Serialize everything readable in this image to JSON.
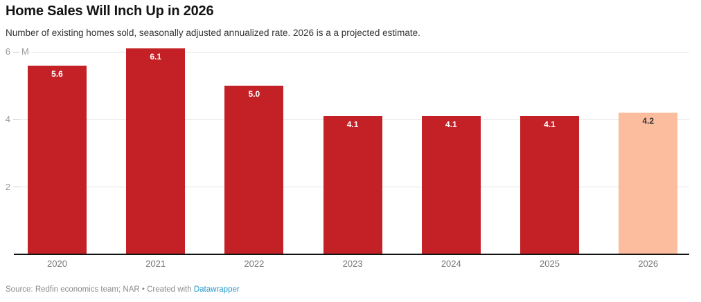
{
  "header": {
    "title": "Home Sales Will Inch Up in 2026",
    "subtitle": "Number of existing homes sold, seasonally adjusted annualized rate. 2026 is a a projected estimate."
  },
  "chart_data": {
    "type": "bar",
    "title": "Home Sales Will Inch Up in 2026",
    "categories": [
      "2020",
      "2021",
      "2022",
      "2023",
      "2024",
      "2025",
      "2026"
    ],
    "values": [
      5.6,
      6.1,
      5.0,
      4.1,
      4.1,
      4.1,
      4.2
    ],
    "bar_labels": [
      "5.6",
      "6.1",
      "5.0",
      "4.1",
      "4.1",
      "4.1",
      "4.2"
    ],
    "xlabel": "",
    "ylabel": "M",
    "unit": "M",
    "ylim": [
      0,
      6.2
    ],
    "yticks": [
      2,
      4,
      6
    ],
    "grid": "horizontal",
    "legend": "none",
    "projected_index": 6,
    "colors": {
      "bar": "#c42127",
      "projected_bar": "#fcbc9e",
      "bar_label": "#ffffff",
      "projected_bar_label": "#333333",
      "gridline": "#e4e4e4",
      "axis_line": "#131313",
      "tick_label": "#9b9b9b",
      "category_label": "#767676"
    }
  },
  "footer": {
    "source_text": "Source: Redfin economics team; NAR",
    "separator": " • ",
    "created_with": "Created with ",
    "link_label": "Datawrapper",
    "link_color": "#2196cc"
  }
}
